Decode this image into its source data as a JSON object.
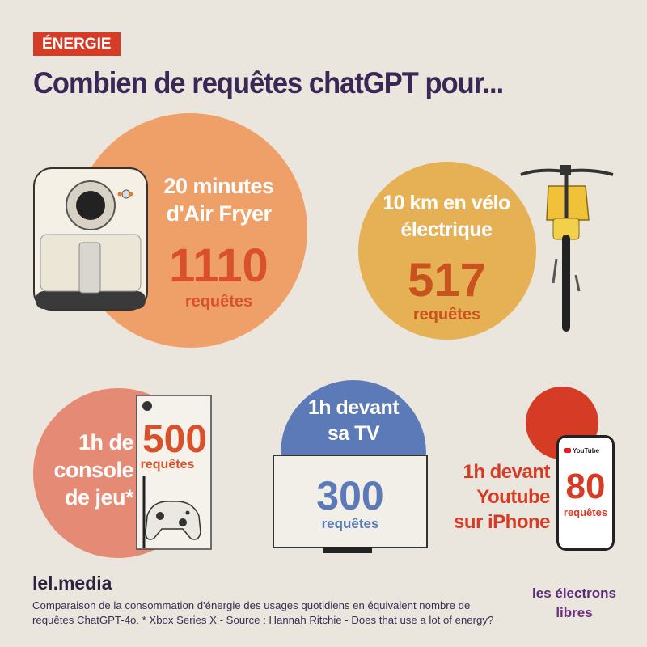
{
  "tag": "ÉNERGIE",
  "title": "Combien de requêtes chatGPT pour...",
  "items": {
    "airfryer": {
      "line1": "20 minutes",
      "line2": "d'Air Fryer",
      "value": "1110",
      "unit": "requêtes"
    },
    "bike": {
      "line1": "10 km en vélo",
      "line2": "électrique",
      "value": "517",
      "unit": "requêtes"
    },
    "console": {
      "line1": "1h de",
      "line2": "console",
      "line3": "de jeu*",
      "value": "500",
      "unit": "requêtes"
    },
    "tv": {
      "line1": "1h devant",
      "line2": "sa TV",
      "value": "300",
      "unit": "requêtes"
    },
    "youtube": {
      "line1": "1h devant",
      "line2": "Youtube",
      "line3": "sur iPhone",
      "value": "80",
      "unit": "requêtes",
      "app_label": "YouTube"
    }
  },
  "footer": {
    "brand": "lel.media",
    "text": "Comparaison de la consommation d'énergie des usages quotidiens en équivalent nombre de requêtes ChatGPT-4o. * Xbox Series X - Source : Hannah Ritchie - Does that use a lot of energy?"
  },
  "logo": {
    "line1": "les électrons",
    "line2": "libres"
  },
  "colors": {
    "background": "#ebe6dd",
    "airfryer_circle": "#eea068",
    "airfryer_number": "#d9512a",
    "bike_circle": "#e6b055",
    "bike_number": "#c9531f",
    "console_circle": "#e58a74",
    "console_number": "#d9512a",
    "tv_circle": "#5b7ab7",
    "tv_number": "#5b7ab7",
    "youtube_circle": "#d63b25",
    "youtube_text": "#d63b25",
    "title": "#3b2755"
  }
}
